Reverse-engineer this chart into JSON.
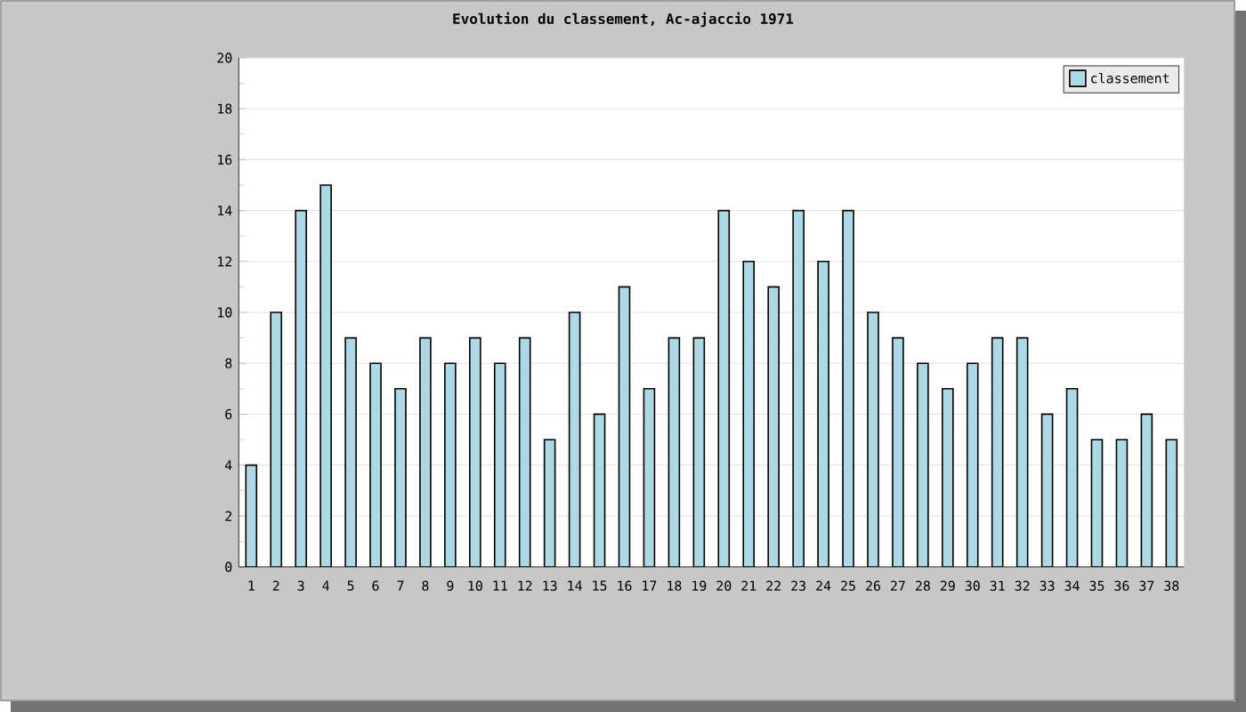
{
  "chart_data": {
    "type": "bar",
    "title": "Evolution du classement, Ac-ajaccio 1971",
    "categories": [
      "1",
      "2",
      "3",
      "4",
      "5",
      "6",
      "7",
      "8",
      "9",
      "10",
      "11",
      "12",
      "13",
      "14",
      "15",
      "16",
      "17",
      "18",
      "19",
      "20",
      "21",
      "22",
      "23",
      "24",
      "25",
      "26",
      "27",
      "28",
      "29",
      "30",
      "31",
      "32",
      "33",
      "34",
      "35",
      "36",
      "37",
      "38"
    ],
    "series": [
      {
        "name": "classement",
        "color": "#add8e6",
        "values": [
          4,
          10,
          14,
          15,
          9,
          8,
          7,
          9,
          8,
          9,
          8,
          9,
          5,
          10,
          6,
          11,
          7,
          9,
          9,
          14,
          12,
          11,
          14,
          12,
          14,
          10,
          9,
          8,
          7,
          8,
          9,
          9,
          6,
          7,
          5,
          5,
          6,
          5
        ]
      }
    ],
    "ylim": [
      0,
      20
    ],
    "yticks": [
      0,
      2,
      4,
      6,
      8,
      10,
      12,
      14,
      16,
      18,
      20
    ],
    "grid": "y",
    "legend": "top right"
  }
}
